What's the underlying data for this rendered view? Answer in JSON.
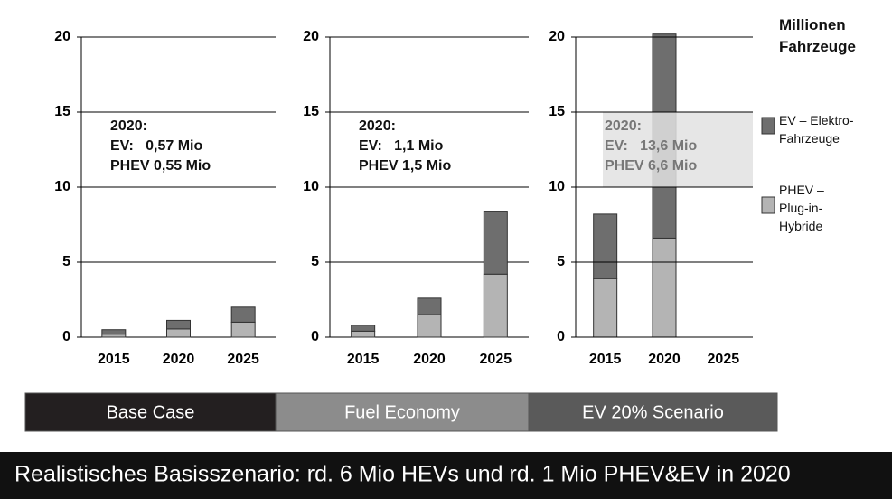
{
  "chart_data": {
    "type": "bar",
    "stacked": true,
    "legend_title": "Millionen Fahrzeuge",
    "ylim": [
      0,
      20
    ],
    "yticks": [
      0,
      5,
      10,
      15,
      20
    ],
    "grid": true,
    "series": [
      {
        "name": "PHEV – Plug-in-Hybride",
        "color": "#b4b4b4"
      },
      {
        "name": "EV – Elektro-Fahrzeuge",
        "color": "#6e6e6e"
      }
    ],
    "panels": [
      {
        "categories": [
          "2015",
          "2020",
          "2025"
        ],
        "annotation": [
          "2020:",
          "EV:   0,57 Mio",
          "PHEV 0,55 Mio"
        ],
        "series": [
          {
            "values": [
              0.2,
              0.55,
              1.0
            ]
          },
          {
            "values": [
              0.3,
              0.57,
              1.0
            ]
          }
        ]
      },
      {
        "categories": [
          "2015",
          "2020",
          "2025"
        ],
        "annotation": [
          "2020:",
          "EV:   1,1 Mio",
          "PHEV 1,5 Mio"
        ],
        "series": [
          {
            "values": [
              0.4,
              1.5,
              4.2
            ]
          },
          {
            "values": [
              0.4,
              1.1,
              4.2
            ]
          }
        ]
      },
      {
        "categories": [
          "2015",
          "2020",
          "2025"
        ],
        "annotation": [
          "2020:",
          "EV:   13,6 Mio",
          "PHEV 6,6 Mio"
        ],
        "annotation_box": true,
        "series": [
          {
            "values": [
              3.9,
              6.6,
              null
            ]
          },
          {
            "values": [
              4.3,
              13.6,
              null
            ]
          }
        ]
      }
    ]
  },
  "scenarios": [
    {
      "label": "Base Case",
      "color": "#231f20"
    },
    {
      "label": "Fuel Economy",
      "color": "#8c8c8c"
    },
    {
      "label": "EV 20% Scenario",
      "color": "#5a5a5a"
    }
  ],
  "footer": "Realistisches Basisszenario: rd. 6 Mio HEVs und rd. 1 Mio PHEV&EV in 2020"
}
